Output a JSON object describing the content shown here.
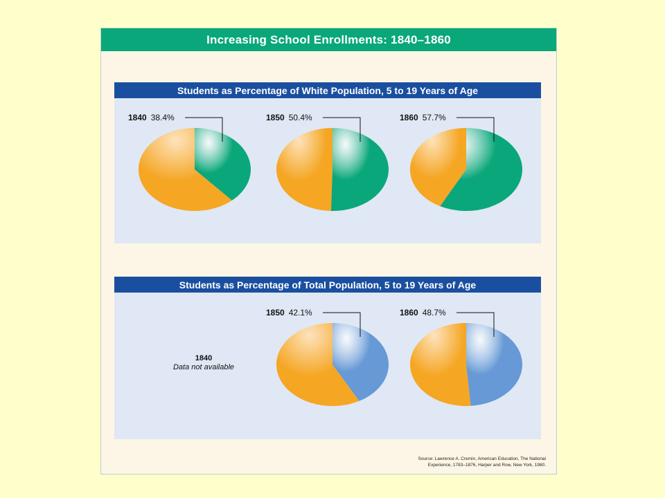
{
  "chart_data": {
    "title": "Increasing School Enrollments: 1840–1860",
    "panels": [
      {
        "type": "pie",
        "title": "Students as Percentage of White Population, 5 to 19 Years of Age",
        "accent_color": "#0aa77a",
        "remainder_color": "#f5a623",
        "pies": [
          {
            "year": "1840",
            "label": "38.4%",
            "value": 38.4
          },
          {
            "year": "1850",
            "label": "50.4%",
            "value": 50.4
          },
          {
            "year": "1860",
            "label": "57.7%",
            "value": 57.7
          }
        ]
      },
      {
        "type": "pie",
        "title": "Students as Percentage of Total Population, 5 to 19 Years of Age",
        "accent_color": "#6699d6",
        "remainder_color": "#f5a623",
        "unavailable": {
          "year": "1840",
          "text": "Data not available"
        },
        "pies": [
          {
            "year": "1850",
            "label": "42.1%",
            "value": 42.1
          },
          {
            "year": "1860",
            "label": "48.7%",
            "value": 48.7
          }
        ]
      }
    ],
    "source_line1": "Source: Lawrence A. Cremin, American Education, The National",
    "source_line2": "Experience, 1783–1876, Harper and Row, New York, 1980."
  }
}
